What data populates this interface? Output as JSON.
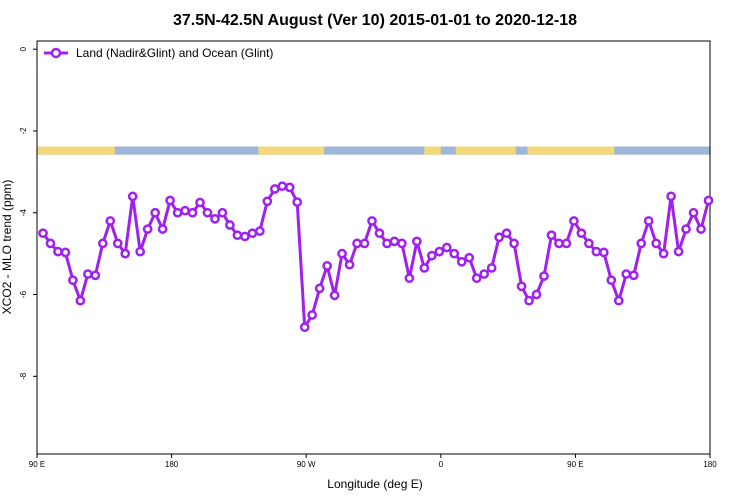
{
  "chart_data": {
    "type": "line",
    "title": "37.5N-42.5N August (Ver 10)   2015-01-01 to 2020-12-18",
    "xlabel": "Longitude (deg E)",
    "ylabel": "XCO2 - MLO trend (ppm)",
    "xlim": [
      90,
      540
    ],
    "ylim": [
      -9.9,
      0.2
    ],
    "x_ticks": [
      {
        "value": 90,
        "label": "90 E"
      },
      {
        "value": 180,
        "label": "180"
      },
      {
        "value": 270,
        "label": "90 W"
      },
      {
        "value": 360,
        "label": "0"
      },
      {
        "value": 450,
        "label": "90 E"
      },
      {
        "value": 540,
        "label": "180"
      }
    ],
    "y_ticks": [
      {
        "value": 0,
        "label": "0"
      },
      {
        "value": -2,
        "label": "-2"
      },
      {
        "value": -4,
        "label": "-4"
      },
      {
        "value": -6,
        "label": "-6"
      },
      {
        "value": -8,
        "label": "-8"
      }
    ],
    "legend": {
      "position": "top-left",
      "entries": [
        "Land (Nadir&Glint) and Ocean (Glint)"
      ]
    },
    "series": [
      {
        "name": "Land (Nadir&Glint) and Ocean (Glint)",
        "color": "#a020f0",
        "x": [
          94,
          99,
          104,
          109,
          114,
          119,
          124,
          129,
          134,
          139,
          144,
          149,
          154,
          159,
          164,
          169,
          174,
          179,
          184,
          189,
          194,
          199,
          204,
          209,
          214,
          219,
          224,
          229,
          234,
          239,
          244,
          249,
          254,
          259,
          264,
          269,
          274,
          279,
          284,
          289,
          294,
          299,
          304,
          309,
          314,
          319,
          324,
          329,
          334,
          339,
          344,
          349,
          354,
          359,
          364,
          369,
          374,
          379,
          384,
          389,
          394,
          399,
          404,
          409,
          414,
          419,
          424,
          429,
          434,
          439,
          444,
          449,
          454,
          459,
          464,
          469,
          474,
          479,
          484,
          489,
          494,
          499,
          504,
          509,
          514,
          519,
          524,
          529,
          534,
          539
        ],
        "y": [
          -4.5,
          -4.75,
          -4.95,
          -4.97,
          -5.65,
          -6.15,
          -5.5,
          -5.53,
          -4.75,
          -4.2,
          -4.75,
          -5.0,
          -3.6,
          -4.95,
          -4.4,
          -4.0,
          -4.4,
          -3.7,
          -4.0,
          -3.95,
          -4.0,
          -3.75,
          -4.0,
          -4.15,
          -4.0,
          -4.3,
          -4.55,
          -4.58,
          -4.5,
          -4.45,
          -3.72,
          -3.42,
          -3.35,
          -3.38,
          -3.74,
          -6.8,
          -6.5,
          -5.85,
          -5.3,
          -6.02,
          -5.0,
          -5.27,
          -4.75,
          -4.75,
          -4.2,
          -4.5,
          -4.75,
          -4.7,
          -4.75,
          -5.6,
          -4.7,
          -5.35,
          -5.05,
          -4.95,
          -4.85,
          -5.0,
          -5.2,
          -5.1,
          -5.6,
          -5.5,
          -5.35,
          -4.6,
          -4.5,
          -4.75,
          -5.8,
          -6.15,
          -6.0,
          -5.55,
          -4.55,
          -4.75,
          -4.75,
          -4.2,
          -4.5,
          -4.75,
          -4.95,
          -4.97,
          -5.65,
          -6.15,
          -5.5,
          -5.53,
          -4.75,
          -4.2,
          -4.75,
          -5.0,
          -3.6,
          -4.95,
          -4.4,
          -4.0,
          -4.4,
          -3.7
        ]
      }
    ],
    "map_strip": {
      "y_range": [
        -2.58,
        -2.38
      ],
      "ocean_color": "#9fb6d9",
      "land_color": "#f3d77b",
      "land_segments": [
        [
          90,
          142
        ],
        [
          238,
          282
        ],
        [
          349,
          360
        ],
        [
          370,
          410
        ],
        [
          418,
          476
        ]
      ]
    }
  }
}
